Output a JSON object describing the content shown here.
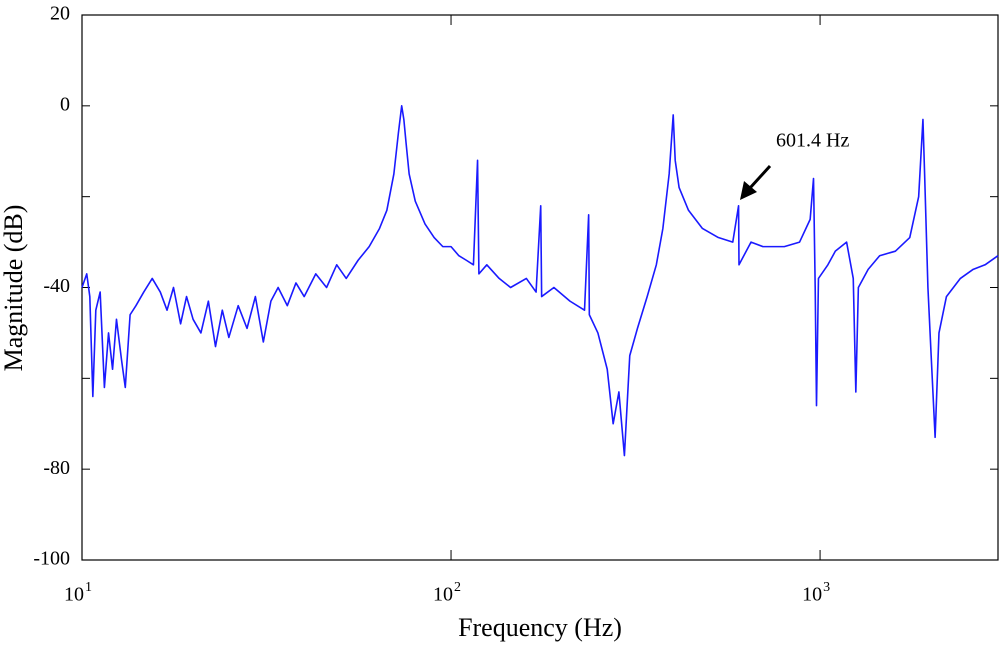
{
  "chart_data": {
    "type": "line",
    "xlabel": "Frequency (Hz)",
    "ylabel": "Magnitude (dB)",
    "annotation": "601.4 Hz",
    "xscale": "log",
    "xlim": [
      10,
      3035
    ],
    "xticks": [
      {
        "value": 10,
        "label": "10",
        "sup": "1"
      },
      {
        "value": 100,
        "label": "10",
        "sup": "2"
      },
      {
        "value": 1000,
        "label": "10",
        "sup": "3"
      }
    ],
    "ylim": [
      -100,
      20
    ],
    "yticks": [
      20,
      0,
      -40,
      -80,
      -100
    ],
    "yminor_ticks": [
      -20,
      -60
    ],
    "grid": false,
    "color": "#1a1aff",
    "x": [
      10,
      10.3,
      10.5,
      10.7,
      10.9,
      11.2,
      11.5,
      11.8,
      12.1,
      12.4,
      12.8,
      13.1,
      13.5,
      14,
      14.7,
      15.5,
      16.3,
      17,
      17.7,
      18.5,
      19.2,
      20,
      21,
      22,
      23,
      24,
      25,
      26.5,
      28,
      29.5,
      31,
      32.5,
      34,
      36,
      38,
      40,
      43,
      46,
      49,
      52,
      56,
      60,
      64,
      67,
      70,
      72,
      73.5,
      74.5,
      75.5,
      77,
      80,
      85,
      90,
      95,
      100,
      105,
      110,
      115,
      118,
      119,
      125,
      135,
      145,
      160,
      170,
      175,
      176,
      190,
      210,
      230,
      236,
      237,
      250,
      265,
      275,
      285,
      295,
      305,
      320,
      340,
      360,
      375,
      390,
      400,
      405,
      415,
      440,
      480,
      530,
      580,
      601.4,
      603,
      650,
      700,
      800,
      880,
      940,
      960,
      970,
      978,
      990,
      1050,
      1100,
      1180,
      1230,
      1250,
      1270,
      1350,
      1450,
      1600,
      1750,
      1850,
      1900,
      1920,
      1960,
      2000,
      2050,
      2100,
      2200,
      2400,
      2600,
      2800,
      3035
    ],
    "values": [
      -40,
      -37,
      -42,
      -64,
      -45,
      -41,
      -62,
      -50,
      -58,
      -47,
      -56,
      -62,
      -46,
      -44,
      -41,
      -38,
      -41,
      -45,
      -40,
      -48,
      -42,
      -47,
      -50,
      -43,
      -53,
      -45,
      -51,
      -44,
      -49,
      -42,
      -52,
      -43,
      -40,
      -44,
      -39,
      -42,
      -37,
      -40,
      -35,
      -38,
      -34,
      -31,
      -27,
      -23,
      -15,
      -6,
      0,
      -3,
      -8,
      -15,
      -21,
      -26,
      -29,
      -31,
      -31,
      -33,
      -34,
      -35,
      -12,
      -37,
      -35,
      -38,
      -40,
      -38,
      -41,
      -22,
      -42,
      -40,
      -43,
      -45,
      -24,
      -46,
      -50,
      -58,
      -70,
      -63,
      -77,
      -55,
      -49,
      -42,
      -35,
      -27,
      -15,
      -2,
      -12,
      -18,
      -23,
      -27,
      -29,
      -30,
      -22,
      -35,
      -30,
      -31,
      -31,
      -30,
      -25,
      -16,
      -40,
      -66,
      -38,
      -35,
      -32,
      -30,
      -38,
      -63,
      -40,
      -36,
      -33,
      -32,
      -29,
      -20,
      -3,
      -15,
      -40,
      -55,
      -73,
      -50,
      -42,
      -38,
      -36,
      -35,
      -33
    ]
  }
}
